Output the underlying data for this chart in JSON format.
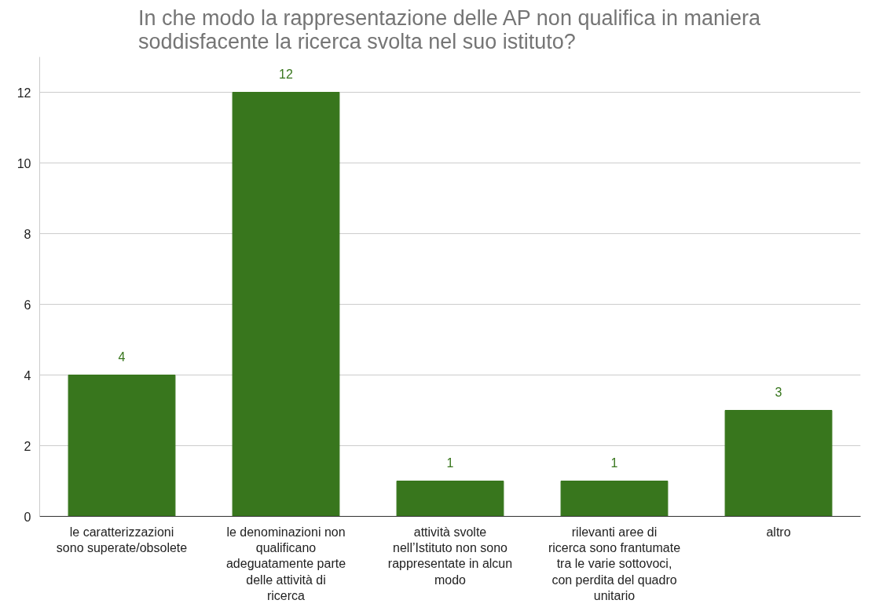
{
  "chart_data": {
    "type": "bar",
    "title": "In che modo la rappresentazione delle AP non qualifica in maniera soddisfacente la ricerca svolta nel suo istituto?",
    "categories": [
      "le caratterizzazioni sono superate/obsolete",
      "le denominazioni non qualificano adeguatamente parte delle attività di ricerca",
      "attività svolte nell’Istituto non sono rappresentate in alcun modo",
      "rilevanti aree di ricerca sono frantumate tra le varie sottovoci, con perdita del quadro unitario",
      "altro"
    ],
    "values": [
      4,
      12,
      1,
      1,
      3
    ],
    "color": "#38761d",
    "ylim": [
      0,
      13
    ],
    "yticks": [
      0,
      2,
      4,
      6,
      8,
      10,
      12
    ],
    "grid": "y",
    "data_labels": true
  }
}
